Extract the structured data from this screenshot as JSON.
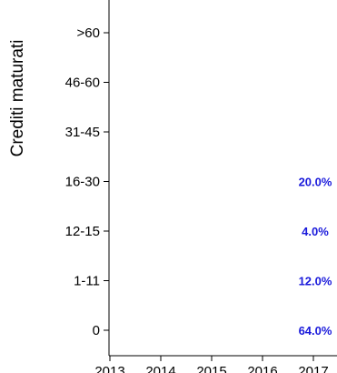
{
  "chart_data": {
    "type": "table",
    "ylabel": "Crediti maturati",
    "xlabel": "",
    "categories_y": [
      "0",
      "1-11",
      "12-15",
      "16-30",
      "31-45",
      "46-60",
      ">60"
    ],
    "categories_x": [
      "2013",
      "2014",
      "2015",
      "2016",
      "2017"
    ],
    "series": [
      {
        "x": "2017",
        "values": [
          {
            "y": "0",
            "value": 64.0,
            "label": "64.0%"
          },
          {
            "y": "1-11",
            "value": 12.0,
            "label": "12.0%"
          },
          {
            "y": "12-15",
            "value": 4.0,
            "label": "4.0%"
          },
          {
            "y": "16-30",
            "value": 20.0,
            "label": "20.0%"
          }
        ]
      }
    ],
    "label_color": "#1a1adb",
    "grid": false
  }
}
